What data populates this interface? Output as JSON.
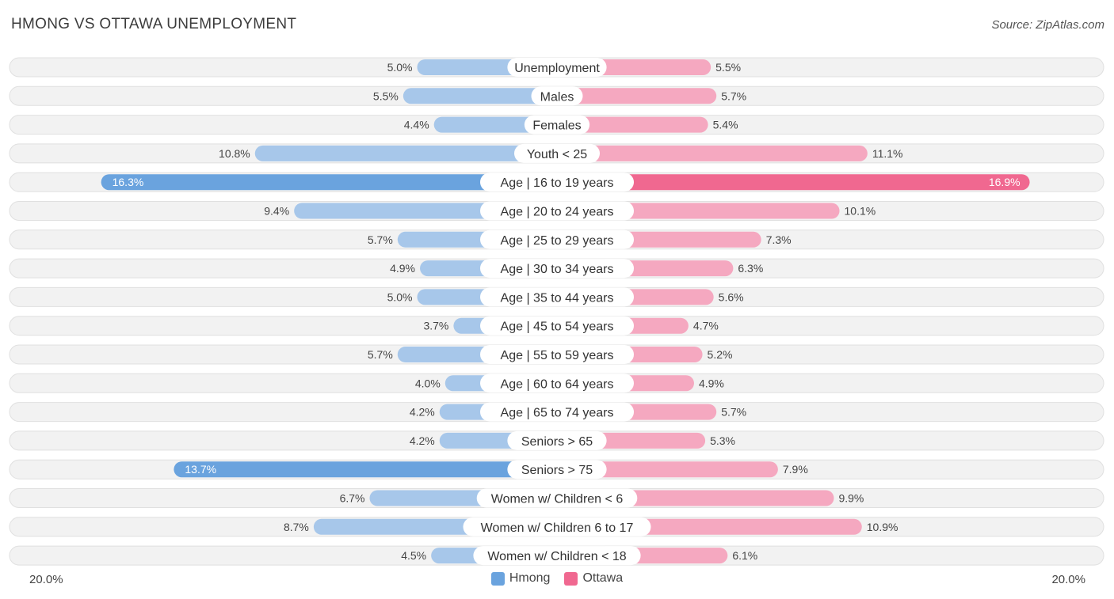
{
  "header": {
    "title": "HMONG VS OTTAWA UNEMPLOYMENT",
    "source": "Source: ZipAtlas.com"
  },
  "colors": {
    "hmong": "#6aa3de",
    "hmong_light": "#a7c7ea",
    "ottawa": "#f06890",
    "ottawa_light": "#f5a8c0",
    "row_bg": "#f2f2f2",
    "row_border": "#e0e0e0"
  },
  "legend": {
    "hmong_label": "Hmong",
    "ottawa_label": "Ottawa"
  },
  "axis": {
    "left_label": "20.0%",
    "right_label": "20.0%"
  },
  "chart_data": {
    "type": "bar",
    "orientation": "horizontal-diverging",
    "title": "HMONG VS OTTAWA UNEMPLOYMENT",
    "xlim": [
      -20,
      20
    ],
    "categories": [
      "Unemployment",
      "Males",
      "Females",
      "Youth < 25",
      "Age | 16 to 19 years",
      "Age | 20 to 24 years",
      "Age | 25 to 29 years",
      "Age | 30 to 34 years",
      "Age | 35 to 44 years",
      "Age | 45 to 54 years",
      "Age | 55 to 59 years",
      "Age | 60 to 64 years",
      "Age | 65 to 74 years",
      "Seniors > 65",
      "Seniors > 75",
      "Women w/ Children < 6",
      "Women w/ Children 6 to 17",
      "Women w/ Children < 18"
    ],
    "series": [
      {
        "name": "Hmong",
        "values": [
          5.0,
          5.5,
          4.4,
          10.8,
          16.3,
          9.4,
          5.7,
          4.9,
          5.0,
          3.7,
          5.7,
          4.0,
          4.2,
          4.2,
          13.7,
          6.7,
          8.7,
          4.5
        ],
        "labels": [
          "5.0%",
          "5.5%",
          "4.4%",
          "10.8%",
          "16.3%",
          "9.4%",
          "5.7%",
          "4.9%",
          "5.0%",
          "3.7%",
          "5.7%",
          "4.0%",
          "4.2%",
          "4.2%",
          "13.7%",
          "6.7%",
          "8.7%",
          "4.5%"
        ]
      },
      {
        "name": "Ottawa",
        "values": [
          5.5,
          5.7,
          5.4,
          11.1,
          16.9,
          10.1,
          7.3,
          6.3,
          5.6,
          4.7,
          5.2,
          4.9,
          5.7,
          5.3,
          7.9,
          9.9,
          10.9,
          6.1
        ],
        "labels": [
          "5.5%",
          "5.7%",
          "5.4%",
          "11.1%",
          "16.9%",
          "10.1%",
          "7.3%",
          "6.3%",
          "5.6%",
          "4.7%",
          "5.2%",
          "4.9%",
          "5.7%",
          "5.3%",
          "7.9%",
          "9.9%",
          "10.9%",
          "6.1%"
        ]
      }
    ]
  }
}
